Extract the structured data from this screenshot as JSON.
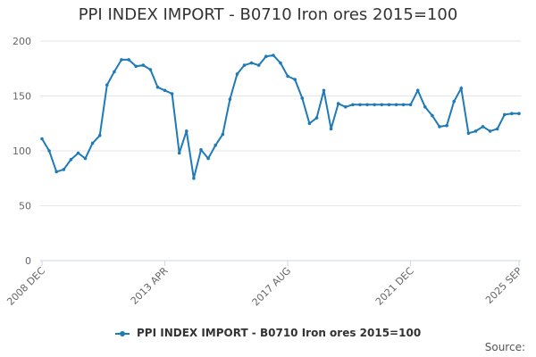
{
  "chart_data": {
    "type": "line",
    "title": "PPI INDEX IMPORT - B0710 Iron ores 2015=100",
    "xlabel": "",
    "ylabel": "",
    "ylim": [
      0,
      200
    ],
    "yticks": [
      "0",
      "50",
      "100",
      "150",
      "200"
    ],
    "xtick_labels": [
      "2008 DEC",
      "2013 APR",
      "2017 AUG",
      "2021 DEC",
      "2025 SEP"
    ],
    "grid": true,
    "legend": "bottom",
    "source_label": "Source:",
    "color": "#1f7ab8",
    "series": [
      {
        "name": "PPI INDEX IMPORT - B0710 Iron ores 2015=100",
        "x": [
          "2008 DEC",
          "2009 MAR",
          "2009 JUN",
          "2009 SEP",
          "2009 DEC",
          "2010 MAR",
          "2010 JUN",
          "2010 SEP",
          "2010 DEC",
          "2011 MAR",
          "2011 JUN",
          "2011 SEP",
          "2011 DEC",
          "2012 MAR",
          "2012 JUN",
          "2012 SEP",
          "2012 DEC",
          "2013 APR",
          "2013 JUN",
          "2013 SEP",
          "2013 DEC",
          "2014 MAR",
          "2014 JUN",
          "2014 SEP",
          "2014 DEC",
          "2015 MAR",
          "2015 JUN",
          "2015 SEP",
          "2015 DEC",
          "2016 MAR",
          "2016 JUN",
          "2016 SEP",
          "2016 DEC",
          "2017 MAR",
          "2017 AUG",
          "2017 NOV",
          "2018 FEB",
          "2018 MAY",
          "2018 AUG",
          "2018 NOV",
          "2019 FEB",
          "2019 MAY",
          "2019 AUG",
          "2019 NOV",
          "2020 FEB",
          "2020 MAY",
          "2020 AUG",
          "2020 NOV",
          "2021 FEB",
          "2021 MAY",
          "2021 AUG",
          "2021 DEC",
          "2022 MAR",
          "2022 JUN",
          "2022 SEP",
          "2022 DEC",
          "2023 MAR",
          "2023 JUN",
          "2023 SEP",
          "2023 DEC",
          "2024 MAR",
          "2024 JUN",
          "2024 SEP",
          "2024 DEC",
          "2025 MAR",
          "2025 JUN",
          "2025 SEP"
        ],
        "values": [
          111,
          100,
          81,
          83,
          92,
          98,
          93,
          107,
          114,
          160,
          172,
          183,
          183,
          177,
          178,
          174,
          158,
          155,
          152,
          98,
          118,
          75,
          101,
          93,
          105,
          115,
          147,
          170,
          178,
          180,
          178,
          186,
          187,
          180,
          168,
          165,
          148,
          125,
          130,
          155,
          120,
          143,
          140,
          142,
          142,
          142,
          142,
          142,
          142,
          142,
          142,
          142,
          155,
          140,
          132,
          122,
          123,
          145,
          157,
          116,
          118,
          122,
          118,
          120,
          133,
          134,
          134
        ]
      }
    ]
  }
}
